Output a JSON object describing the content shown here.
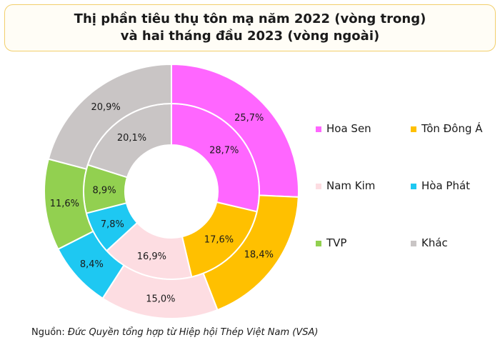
{
  "chart_data": {
    "type": "donut",
    "title_line1": "Thị phần tiêu thụ tôn mạ năm 2022 (vòng trong)",
    "title_line2": "và hai tháng đầu 2023 (vòng ngoài)",
    "categories": [
      "Hoa Sen",
      "Tôn Đông Á",
      "Nam Kim",
      "Hòa Phát",
      "TVP",
      "Khác"
    ],
    "colors": [
      "#ff66ff",
      "#ffc000",
      "#fddde2",
      "#1ec8f2",
      "#92d050",
      "#c9c5c5"
    ],
    "series": [
      {
        "name": "2022",
        "ring": "inner",
        "values": [
          28.7,
          17.6,
          16.9,
          7.8,
          8.9,
          20.1
        ],
        "labels": [
          "28,7%",
          "17,6%",
          "16,9%",
          "7,8%",
          "8,9%",
          "20,1%"
        ]
      },
      {
        "name": "2 tháng đầu 2023",
        "ring": "outer",
        "values": [
          25.7,
          18.4,
          15.0,
          8.4,
          11.6,
          20.9
        ],
        "labels": [
          "25,7%",
          "18,4%",
          "15,0%",
          "8,4%",
          "11,6%",
          "20,9%"
        ]
      }
    ],
    "legend_position": "right"
  },
  "source": {
    "prefix": "Nguồn: ",
    "text": "Đức Quyền tổng hợp từ Hiệp hội Thép Việt Nam (VSA)"
  }
}
